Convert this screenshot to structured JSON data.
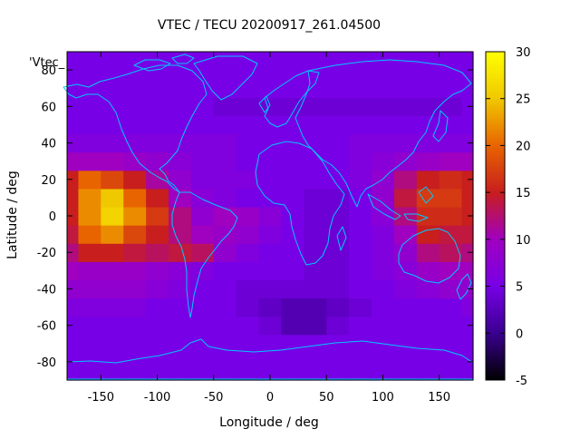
{
  "chart_data": {
    "type": "heatmap",
    "title": "VTEC / TECU 20200917_261.04500",
    "xlabel": "Longitude / deg",
    "ylabel": "Latitude / deg",
    "legend_label": "'Vtec_",
    "xlim": [
      -180,
      180
    ],
    "ylim": [
      -90,
      90
    ],
    "x_ticks": [
      -150,
      -100,
      -50,
      0,
      50,
      100,
      150
    ],
    "y_ticks": [
      -80,
      -60,
      -40,
      -20,
      0,
      20,
      40,
      60,
      80
    ],
    "colorbar": {
      "range": [
        -5,
        30
      ],
      "ticks": [
        -5,
        0,
        5,
        10,
        15,
        20,
        25,
        30
      ],
      "palette": [
        "#000000",
        "#3a0090",
        "#7800e6",
        "#a000c0",
        "#c81e1e",
        "#e86400",
        "#f0c800",
        "#ffff00"
      ]
    },
    "grid": false,
    "coastline_color": "#00c8ff",
    "z_unit": "TECU",
    "z_values_note": "VTEC field estimated from color",
    "data": {
      "lon_step": 20,
      "lat_step": 10,
      "lon": [
        -180,
        -160,
        -140,
        -120,
        -100,
        -80,
        -60,
        -40,
        -20,
        0,
        20,
        40,
        60,
        80,
        100,
        120,
        140,
        160,
        180
      ],
      "lat": [
        -90,
        -80,
        -70,
        -60,
        -50,
        -40,
        -30,
        -20,
        -10,
        0,
        10,
        20,
        30,
        40,
        50,
        60,
        70,
        80,
        90
      ],
      "z": [
        [
          5,
          5,
          5,
          5,
          5,
          5,
          5,
          5,
          5,
          5,
          5,
          5,
          5,
          5,
          5,
          5,
          5,
          5,
          5
        ],
        [
          5,
          5,
          5,
          5,
          5,
          5,
          5,
          5,
          5,
          5,
          5,
          5,
          5,
          5,
          5,
          5,
          5,
          5,
          5
        ],
        [
          5,
          5,
          5,
          5,
          5,
          5,
          5,
          5,
          5,
          5,
          5,
          5,
          5,
          5,
          5,
          5,
          5,
          5,
          5
        ],
        [
          5,
          5,
          5,
          5,
          5,
          5,
          5,
          5,
          5,
          4,
          2,
          2,
          4,
          5,
          5,
          5,
          5,
          5,
          5
        ],
        [
          6,
          6,
          6,
          6,
          5,
          5,
          5,
          5,
          4,
          3,
          2,
          2,
          3,
          4,
          5,
          5,
          5,
          5,
          6
        ],
        [
          8,
          8,
          8,
          8,
          7,
          6,
          5,
          5,
          4,
          4,
          4,
          4,
          4,
          5,
          5,
          6,
          7,
          8,
          8
        ],
        [
          10,
          9,
          9,
          9,
          8,
          7,
          6,
          5,
          5,
          5,
          5,
          4,
          4,
          5,
          6,
          7,
          9,
          10,
          10
        ],
        [
          12,
          15,
          15,
          14,
          13,
          14,
          13,
          8,
          6,
          5,
          5,
          4,
          4,
          5,
          6,
          8,
          12,
          13,
          12
        ],
        [
          14,
          20,
          22,
          18,
          15,
          12,
          10,
          9,
          8,
          6,
          5,
          4,
          4,
          5,
          6,
          10,
          15,
          14,
          14
        ],
        [
          15,
          22,
          26,
          22,
          17,
          12,
          8,
          10,
          9,
          7,
          5,
          4,
          4,
          5,
          7,
          12,
          16,
          16,
          15
        ],
        [
          15,
          22,
          25,
          20,
          15,
          10,
          7,
          6,
          5,
          5,
          5,
          4,
          4,
          5,
          8,
          14,
          17,
          17,
          15
        ],
        [
          15,
          20,
          18,
          15,
          11,
          8,
          6,
          6,
          6,
          5,
          5,
          5,
          5,
          6,
          8,
          12,
          15,
          16,
          15
        ],
        [
          10,
          10,
          10,
          9,
          8,
          7,
          6,
          6,
          5,
          5,
          5,
          5,
          5,
          6,
          7,
          8,
          9,
          10,
          10
        ],
        [
          6,
          6,
          6,
          6,
          6,
          6,
          6,
          6,
          5,
          5,
          5,
          5,
          5,
          6,
          6,
          6,
          6,
          6,
          6
        ],
        [
          5,
          5,
          5,
          5,
          5,
          5,
          5,
          5,
          5,
          5,
          5,
          5,
          5,
          5,
          5,
          5,
          5,
          5,
          5
        ],
        [
          5,
          5,
          5,
          5,
          5,
          5,
          5,
          4,
          4,
          4,
          4,
          4,
          4,
          4,
          4,
          4,
          4,
          4,
          5
        ],
        [
          5,
          5,
          5,
          5,
          5,
          5,
          5,
          5,
          5,
          5,
          5,
          5,
          5,
          5,
          5,
          5,
          5,
          5,
          5
        ],
        [
          5,
          5,
          5,
          5,
          5,
          5,
          5,
          5,
          5,
          5,
          5,
          5,
          5,
          5,
          5,
          5,
          5,
          5,
          5
        ],
        [
          5,
          5,
          5,
          5,
          5,
          5,
          5,
          5,
          5,
          5,
          5,
          5,
          5,
          5,
          5,
          5,
          5,
          5,
          5
        ]
      ]
    }
  }
}
